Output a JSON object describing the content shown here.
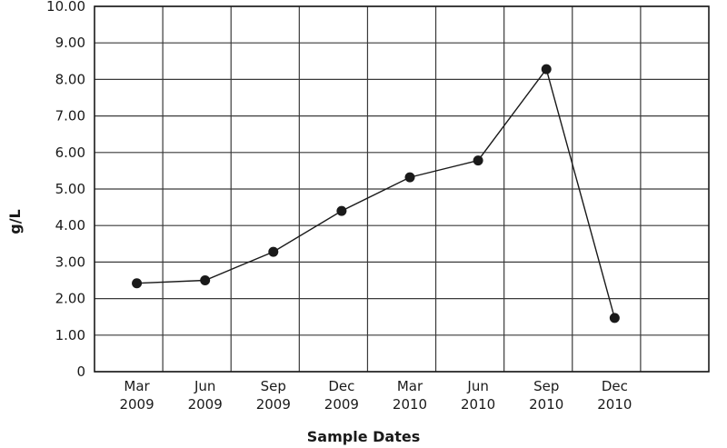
{
  "chart_data": {
    "type": "line",
    "title": "",
    "xlabel": "Sample Dates",
    "ylabel": "g/L",
    "ylim": [
      0,
      10
    ],
    "y_ticks": [
      "0",
      "1.00",
      "2.00",
      "3.00",
      "4.00",
      "5.00",
      "6.00",
      "7.00",
      "8.00",
      "9.00",
      "10.00"
    ],
    "grid": true,
    "legend": "none",
    "categories": [
      {
        "month": "Mar",
        "year": "2009"
      },
      {
        "month": "Jun",
        "year": "2009"
      },
      {
        "month": "Sep",
        "year": "2009"
      },
      {
        "month": "Dec",
        "year": "2009"
      },
      {
        "month": "Mar",
        "year": "2010"
      },
      {
        "month": "Jun",
        "year": "2010"
      },
      {
        "month": "Sep",
        "year": "2010"
      },
      {
        "month": "Dec",
        "year": "2010"
      }
    ],
    "series": [
      {
        "values": [
          2.42,
          2.5,
          3.28,
          4.4,
          5.32,
          5.78,
          8.28,
          1.47
        ],
        "color": "#1a1a1a"
      }
    ]
  }
}
